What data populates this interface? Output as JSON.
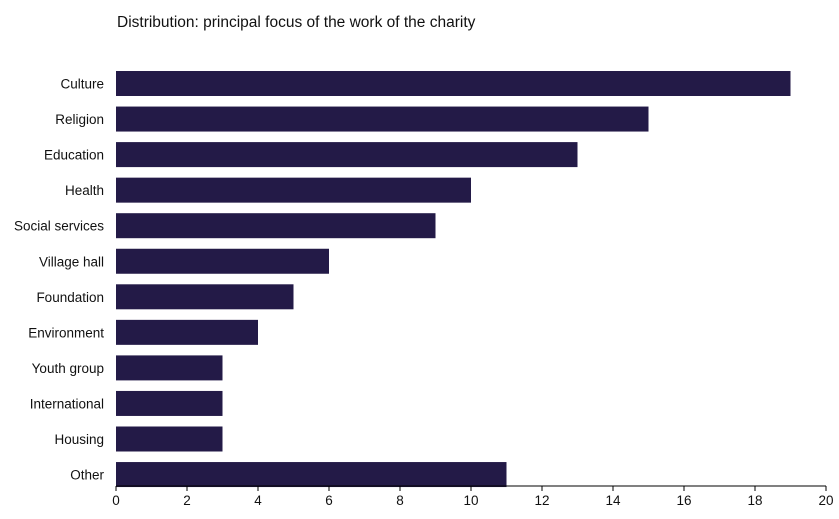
{
  "chart_data": {
    "type": "bar",
    "orientation": "horizontal",
    "title": "Distribution: principal focus of the work of the charity",
    "xlabel": "",
    "ylabel": "",
    "categories": [
      "Culture",
      "Religion",
      "Education",
      "Health",
      "Social services",
      "Village hall",
      "Foundation",
      "Environment",
      "Youth group",
      "International",
      "Housing",
      "Other"
    ],
    "values": [
      19,
      15,
      13,
      10,
      9,
      6,
      5,
      4,
      3,
      3,
      3,
      11
    ],
    "xlim": [
      0,
      20
    ],
    "xticks": [
      "0",
      "2",
      "4",
      "6",
      "8",
      "10",
      "12",
      "14",
      "16",
      "18",
      "20"
    ],
    "grid": false,
    "legend": "none",
    "bar_color": "#231a47",
    "axis_color": "#000000"
  }
}
